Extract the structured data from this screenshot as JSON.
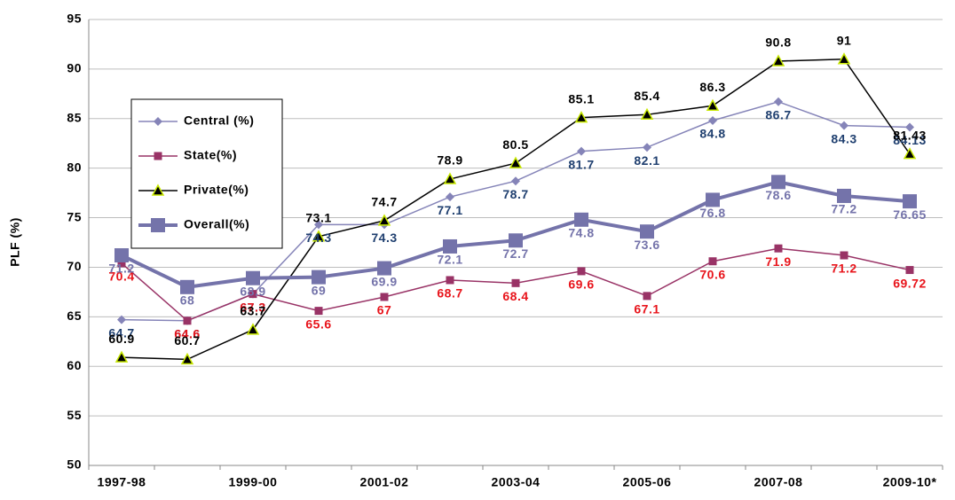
{
  "chart_data": {
    "type": "line",
    "y_label": "PLF (%)",
    "categories": [
      "1997-98",
      null,
      "1999-00",
      null,
      "2001-02",
      null,
      "2003-04",
      null,
      "2005-06",
      null,
      "2007-08",
      null,
      "2009-10*"
    ],
    "ylim": [
      50,
      95
    ],
    "yticks": [
      50,
      55,
      60,
      65,
      70,
      75,
      80,
      85,
      90,
      95
    ],
    "grid": true,
    "legend": "upper-left",
    "series": [
      {
        "name": "Central (%)",
        "color": "#8584b8",
        "label_color": "#1f3f6f",
        "marker": "diamond",
        "values": [
          64.7,
          64.6,
          67.3,
          74.3,
          74.3,
          77.1,
          78.7,
          81.7,
          82.1,
          84.8,
          86.7,
          84.3,
          84.13
        ]
      },
      {
        "name": "State(%)",
        "color": "#993366",
        "label_color": "#e8141b",
        "marker": "square",
        "values": [
          70.4,
          64.6,
          67.3,
          65.6,
          67,
          68.7,
          68.4,
          69.6,
          67.1,
          70.6,
          71.9,
          71.2,
          69.72
        ]
      },
      {
        "name": "Private(%)",
        "color": "#000000",
        "label_color": "#000000",
        "marker": "triangle",
        "values": [
          60.9,
          60.7,
          63.7,
          73.1,
          74.7,
          78.9,
          80.5,
          85.1,
          85.4,
          86.3,
          90.8,
          91,
          81.43
        ]
      },
      {
        "name": "Overall(%)",
        "color": "#7473aa",
        "label_color": "#7473aa",
        "marker": "bigsquare",
        "values": [
          71.2,
          68,
          68.9,
          69,
          69.9,
          72.1,
          72.7,
          74.8,
          73.6,
          76.8,
          78.6,
          77.2,
          76.65
        ]
      }
    ]
  }
}
